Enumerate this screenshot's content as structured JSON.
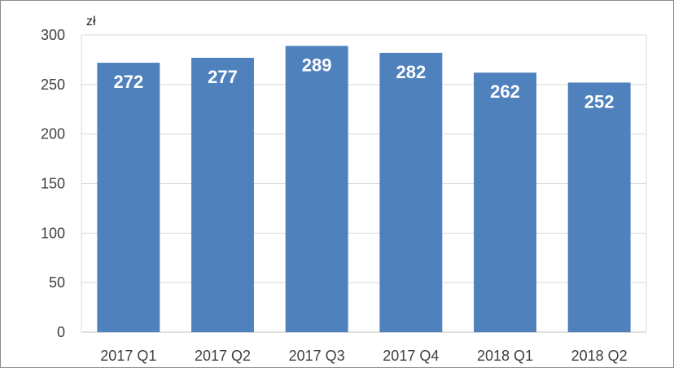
{
  "chart_data": {
    "type": "bar",
    "ylabel": "zł",
    "categories": [
      "2017 Q1",
      "2017 Q2",
      "2017 Q3",
      "2017 Q4",
      "2018 Q1",
      "2018 Q2"
    ],
    "values": [
      272,
      277,
      289,
      282,
      262,
      252
    ],
    "data_labels": [
      "272",
      "277",
      "289",
      "282",
      "262",
      "252"
    ],
    "ylim": [
      0,
      300
    ],
    "yticks": [
      0,
      50,
      100,
      150,
      200,
      250,
      300
    ],
    "grid": true,
    "legend": "none",
    "bar_color": "#4f81bd",
    "grid_color": "#d9d9d9",
    "label_color": "#ffffff"
  }
}
